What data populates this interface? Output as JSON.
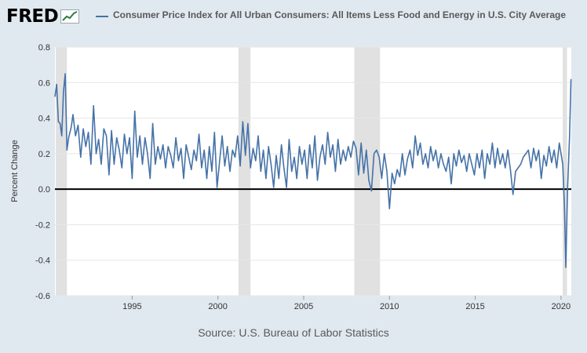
{
  "header": {
    "logo_text": "FRED",
    "legend_label": "Consumer Price Index for All Urban Consumers: All Items Less Food and Energy in U.S. City Average"
  },
  "colors": {
    "series": "#4572a7",
    "recession": "#e1e1e1",
    "background": "#e1e9f0",
    "plot": "#ffffff",
    "grid": "#e6e6e6",
    "zero_line": "#000000"
  },
  "source": "Source: U.S. Bureau of Labor Statistics",
  "chart_data": {
    "type": "line",
    "title": "",
    "xlabel": "",
    "ylabel": "Percent Change",
    "xlim": [
      1990.5,
      2020.6
    ],
    "ylim": [
      -0.6,
      0.8
    ],
    "y_ticks": [
      -0.6,
      -0.4,
      -0.2,
      0.0,
      0.2,
      0.4,
      0.6,
      0.8
    ],
    "x_ticks": [
      1995,
      2000,
      2005,
      2010,
      2015,
      2020
    ],
    "grid": true,
    "zero_line": true,
    "recessions": [
      [
        1990.55,
        1991.2
      ],
      [
        2001.2,
        2001.9
      ],
      [
        2007.95,
        2009.45
      ],
      [
        2020.1,
        2020.35
      ]
    ],
    "series": [
      {
        "name": "Consumer Price Index for All Urban Consumers: All Items Less Food and Energy in U.S. City Average",
        "points": [
          [
            1990.5,
            0.52
          ],
          [
            1990.6,
            0.59
          ],
          [
            1990.7,
            0.38
          ],
          [
            1990.8,
            0.37
          ],
          [
            1990.9,
            0.3
          ],
          [
            1991.0,
            0.55
          ],
          [
            1991.1,
            0.65
          ],
          [
            1991.2,
            0.22
          ],
          [
            1991.3,
            0.29
          ],
          [
            1991.45,
            0.35
          ],
          [
            1991.55,
            0.42
          ],
          [
            1991.7,
            0.3
          ],
          [
            1991.85,
            0.36
          ],
          [
            1992.0,
            0.18
          ],
          [
            1992.15,
            0.34
          ],
          [
            1992.3,
            0.24
          ],
          [
            1992.45,
            0.32
          ],
          [
            1992.6,
            0.14
          ],
          [
            1992.75,
            0.47
          ],
          [
            1992.9,
            0.2
          ],
          [
            1993.05,
            0.28
          ],
          [
            1993.2,
            0.14
          ],
          [
            1993.35,
            0.34
          ],
          [
            1993.5,
            0.3
          ],
          [
            1993.65,
            0.08
          ],
          [
            1993.8,
            0.33
          ],
          [
            1993.95,
            0.14
          ],
          [
            1994.1,
            0.29
          ],
          [
            1994.25,
            0.22
          ],
          [
            1994.4,
            0.12
          ],
          [
            1994.55,
            0.31
          ],
          [
            1994.7,
            0.2
          ],
          [
            1994.85,
            0.29
          ],
          [
            1995.0,
            0.06
          ],
          [
            1995.15,
            0.44
          ],
          [
            1995.3,
            0.18
          ],
          [
            1995.45,
            0.3
          ],
          [
            1995.6,
            0.14
          ],
          [
            1995.75,
            0.29
          ],
          [
            1995.9,
            0.2
          ],
          [
            1996.05,
            0.06
          ],
          [
            1996.2,
            0.37
          ],
          [
            1996.35,
            0.14
          ],
          [
            1996.5,
            0.24
          ],
          [
            1996.65,
            0.17
          ],
          [
            1996.8,
            0.25
          ],
          [
            1996.95,
            0.12
          ],
          [
            1997.1,
            0.24
          ],
          [
            1997.25,
            0.19
          ],
          [
            1997.4,
            0.12
          ],
          [
            1997.55,
            0.29
          ],
          [
            1997.7,
            0.16
          ],
          [
            1997.85,
            0.23
          ],
          [
            1998.0,
            0.06
          ],
          [
            1998.15,
            0.25
          ],
          [
            1998.3,
            0.18
          ],
          [
            1998.45,
            0.11
          ],
          [
            1998.6,
            0.22
          ],
          [
            1998.75,
            0.16
          ],
          [
            1998.9,
            0.31
          ],
          [
            1999.05,
            0.12
          ],
          [
            1999.2,
            0.22
          ],
          [
            1999.35,
            0.06
          ],
          [
            1999.5,
            0.24
          ],
          [
            1999.65,
            0.1
          ],
          [
            1999.8,
            0.32
          ],
          [
            1999.95,
            0.01
          ],
          [
            2000.1,
            0.16
          ],
          [
            2000.25,
            0.3
          ],
          [
            2000.4,
            0.13
          ],
          [
            2000.55,
            0.24
          ],
          [
            2000.7,
            0.1
          ],
          [
            2000.85,
            0.22
          ],
          [
            2001.0,
            0.18
          ],
          [
            2001.15,
            0.3
          ],
          [
            2001.3,
            0.13
          ],
          [
            2001.45,
            0.38
          ],
          [
            2001.6,
            0.19
          ],
          [
            2001.75,
            0.37
          ],
          [
            2001.9,
            0.12
          ],
          [
            2002.05,
            0.23
          ],
          [
            2002.2,
            0.16
          ],
          [
            2002.35,
            0.3
          ],
          [
            2002.5,
            0.1
          ],
          [
            2002.65,
            0.22
          ],
          [
            2002.8,
            0.06
          ],
          [
            2002.95,
            0.24
          ],
          [
            2003.1,
            0.14
          ],
          [
            2003.25,
            0.01
          ],
          [
            2003.4,
            0.19
          ],
          [
            2003.55,
            0.06
          ],
          [
            2003.7,
            0.25
          ],
          [
            2003.85,
            0.12
          ],
          [
            2004.0,
            0.01
          ],
          [
            2004.15,
            0.28
          ],
          [
            2004.3,
            0.1
          ],
          [
            2004.45,
            0.18
          ],
          [
            2004.6,
            0.06
          ],
          [
            2004.75,
            0.24
          ],
          [
            2004.9,
            0.14
          ],
          [
            2005.05,
            0.22
          ],
          [
            2005.2,
            0.06
          ],
          [
            2005.35,
            0.25
          ],
          [
            2005.5,
            0.12
          ],
          [
            2005.65,
            0.3
          ],
          [
            2005.8,
            0.05
          ],
          [
            2005.95,
            0.18
          ],
          [
            2006.1,
            0.25
          ],
          [
            2006.25,
            0.14
          ],
          [
            2006.4,
            0.32
          ],
          [
            2006.55,
            0.18
          ],
          [
            2006.7,
            0.25
          ],
          [
            2006.85,
            0.1
          ],
          [
            2007.0,
            0.28
          ],
          [
            2007.15,
            0.14
          ],
          [
            2007.3,
            0.22
          ],
          [
            2007.45,
            0.16
          ],
          [
            2007.6,
            0.24
          ],
          [
            2007.75,
            0.18
          ],
          [
            2007.9,
            0.27
          ],
          [
            2008.05,
            0.23
          ],
          [
            2008.2,
            0.08
          ],
          [
            2008.35,
            0.26
          ],
          [
            2008.5,
            0.09
          ],
          [
            2008.65,
            0.22
          ],
          [
            2008.8,
            0.05
          ],
          [
            2008.95,
            -0.01
          ],
          [
            2009.1,
            0.2
          ],
          [
            2009.25,
            0.22
          ],
          [
            2009.4,
            0.18
          ],
          [
            2009.55,
            0.06
          ],
          [
            2009.7,
            0.2
          ],
          [
            2009.85,
            0.1
          ],
          [
            2010.0,
            -0.11
          ],
          [
            2010.15,
            0.09
          ],
          [
            2010.3,
            0.03
          ],
          [
            2010.45,
            0.11
          ],
          [
            2010.6,
            0.07
          ],
          [
            2010.75,
            0.2
          ],
          [
            2010.9,
            0.08
          ],
          [
            2011.05,
            0.17
          ],
          [
            2011.2,
            0.22
          ],
          [
            2011.35,
            0.12
          ],
          [
            2011.5,
            0.3
          ],
          [
            2011.65,
            0.19
          ],
          [
            2011.8,
            0.26
          ],
          [
            2011.95,
            0.14
          ],
          [
            2012.1,
            0.2
          ],
          [
            2012.25,
            0.12
          ],
          [
            2012.4,
            0.24
          ],
          [
            2012.55,
            0.16
          ],
          [
            2012.7,
            0.22
          ],
          [
            2012.85,
            0.12
          ],
          [
            2013.0,
            0.2
          ],
          [
            2013.15,
            0.14
          ],
          [
            2013.3,
            0.1
          ],
          [
            2013.45,
            0.18
          ],
          [
            2013.6,
            0.03
          ],
          [
            2013.75,
            0.2
          ],
          [
            2013.9,
            0.13
          ],
          [
            2014.05,
            0.22
          ],
          [
            2014.2,
            0.15
          ],
          [
            2014.35,
            0.19
          ],
          [
            2014.5,
            0.1
          ],
          [
            2014.65,
            0.2
          ],
          [
            2014.8,
            0.14
          ],
          [
            2014.95,
            0.08
          ],
          [
            2015.1,
            0.2
          ],
          [
            2015.25,
            0.12
          ],
          [
            2015.4,
            0.22
          ],
          [
            2015.55,
            0.06
          ],
          [
            2015.7,
            0.2
          ],
          [
            2015.85,
            0.14
          ],
          [
            2016.0,
            0.26
          ],
          [
            2016.15,
            0.12
          ],
          [
            2016.3,
            0.23
          ],
          [
            2016.45,
            0.14
          ],
          [
            2016.6,
            0.2
          ],
          [
            2016.75,
            0.12
          ],
          [
            2016.9,
            0.22
          ],
          [
            2017.05,
            0.11
          ],
          [
            2017.2,
            -0.03
          ],
          [
            2017.35,
            0.1
          ],
          [
            2017.5,
            0.12
          ],
          [
            2017.65,
            0.14
          ],
          [
            2017.8,
            0.18
          ],
          [
            2017.95,
            0.2
          ],
          [
            2018.1,
            0.22
          ],
          [
            2018.25,
            0.12
          ],
          [
            2018.4,
            0.23
          ],
          [
            2018.55,
            0.16
          ],
          [
            2018.7,
            0.22
          ],
          [
            2018.85,
            0.06
          ],
          [
            2019.0,
            0.19
          ],
          [
            2019.15,
            0.13
          ],
          [
            2019.3,
            0.24
          ],
          [
            2019.45,
            0.15
          ],
          [
            2019.6,
            0.22
          ],
          [
            2019.75,
            0.12
          ],
          [
            2019.9,
            0.26
          ],
          [
            2020.0,
            0.2
          ],
          [
            2020.1,
            0.14
          ],
          [
            2020.2,
            -0.1
          ],
          [
            2020.28,
            -0.44
          ],
          [
            2020.38,
            0.0
          ],
          [
            2020.5,
            0.3
          ],
          [
            2020.58,
            0.62
          ]
        ]
      }
    ]
  }
}
